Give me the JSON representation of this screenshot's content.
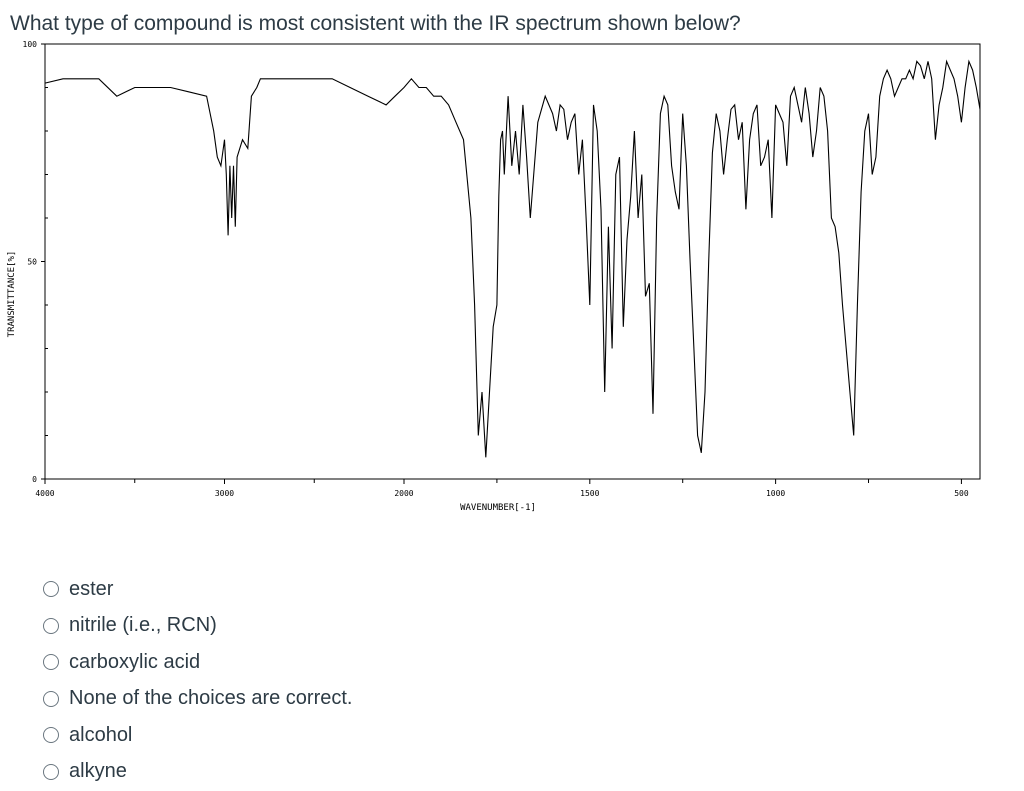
{
  "question": {
    "text": "What type of compound is most consistent with the IR spectrum shown below?"
  },
  "chart_data": {
    "type": "line",
    "xlabel": "WAVENUMBER[-1]",
    "ylabel": "TRANSMITTANCE[%]",
    "xlim": [
      4000,
      450
    ],
    "ylim": [
      0,
      100
    ],
    "x_ticks": [
      "4000",
      "3000",
      "2000",
      "1500",
      "1000",
      "500"
    ],
    "y_ticks": [
      "100",
      "50",
      "0"
    ],
    "grid": false,
    "series": [
      {
        "color": "#000000",
        "x": [
          4000,
          3900,
          3800,
          3700,
          3600,
          3500,
          3400,
          3300,
          3200,
          3100,
          3060,
          3040,
          3020,
          3000,
          2990,
          2980,
          2970,
          2960,
          2950,
          2940,
          2930,
          2900,
          2870,
          2850,
          2820,
          2800,
          2700,
          2600,
          2500,
          2400,
          2300,
          2200,
          2100,
          2050,
          2000,
          1980,
          1960,
          1940,
          1920,
          1900,
          1880,
          1860,
          1840,
          1820,
          1810,
          1800,
          1790,
          1780,
          1770,
          1760,
          1750,
          1745,
          1740,
          1735,
          1730,
          1720,
          1710,
          1700,
          1690,
          1680,
          1670,
          1660,
          1640,
          1620,
          1600,
          1590,
          1580,
          1570,
          1560,
          1550,
          1540,
          1530,
          1520,
          1510,
          1500,
          1490,
          1480,
          1470,
          1460,
          1450,
          1440,
          1430,
          1420,
          1410,
          1400,
          1390,
          1380,
          1370,
          1360,
          1350,
          1340,
          1330,
          1320,
          1310,
          1300,
          1290,
          1280,
          1270,
          1260,
          1250,
          1240,
          1230,
          1220,
          1210,
          1200,
          1190,
          1180,
          1170,
          1160,
          1150,
          1140,
          1130,
          1120,
          1110,
          1100,
          1090,
          1080,
          1070,
          1060,
          1050,
          1040,
          1030,
          1020,
          1010,
          1000,
          990,
          980,
          970,
          960,
          950,
          940,
          930,
          920,
          910,
          900,
          890,
          880,
          870,
          860,
          850,
          840,
          830,
          820,
          810,
          800,
          790,
          780,
          770,
          760,
          750,
          740,
          730,
          720,
          710,
          700,
          690,
          680,
          670,
          660,
          650,
          640,
          630,
          620,
          610,
          600,
          590,
          580,
          570,
          560,
          550,
          540,
          530,
          520,
          510,
          500,
          490,
          480,
          470,
          460,
          450
        ],
        "y": [
          91,
          92,
          92,
          92,
          88,
          90,
          90,
          90,
          89,
          88,
          80,
          74,
          72,
          78,
          70,
          56,
          72,
          60,
          72,
          58,
          74,
          78,
          76,
          88,
          90,
          92,
          92,
          92,
          92,
          92,
          90,
          88,
          86,
          88,
          90,
          92,
          90,
          90,
          88,
          88,
          86,
          82,
          78,
          60,
          40,
          10,
          20,
          5,
          20,
          35,
          40,
          65,
          78,
          80,
          70,
          88,
          72,
          80,
          70,
          86,
          74,
          60,
          82,
          88,
          84,
          80,
          86,
          85,
          78,
          82,
          84,
          70,
          78,
          60,
          40,
          86,
          80,
          62,
          20,
          58,
          30,
          70,
          74,
          35,
          55,
          65,
          80,
          60,
          70,
          42,
          45,
          15,
          60,
          84,
          88,
          86,
          72,
          66,
          62,
          84,
          72,
          50,
          30,
          10,
          6,
          20,
          50,
          75,
          84,
          80,
          70,
          78,
          85,
          86,
          78,
          82,
          62,
          78,
          84,
          86,
          72,
          74,
          78,
          60,
          86,
          84,
          82,
          72,
          88,
          90,
          86,
          82,
          90,
          84,
          74,
          80,
          90,
          88,
          80,
          60,
          58,
          52,
          40,
          30,
          20,
          10,
          40,
          66,
          80,
          84,
          70,
          74,
          88,
          92,
          94,
          92,
          88,
          90,
          92,
          92,
          94,
          92,
          96,
          95,
          92,
          96,
          92,
          78,
          86,
          90,
          96,
          94,
          92,
          88,
          82,
          90,
          96,
          94,
          90,
          85
        ]
      }
    ]
  },
  "choices": [
    {
      "label": "ester"
    },
    {
      "label": "nitrile (i.e., RCN)"
    },
    {
      "label": "carboxylic acid"
    },
    {
      "label": "None of the choices are correct."
    },
    {
      "label": "alcohol"
    },
    {
      "label": "alkyne"
    }
  ]
}
